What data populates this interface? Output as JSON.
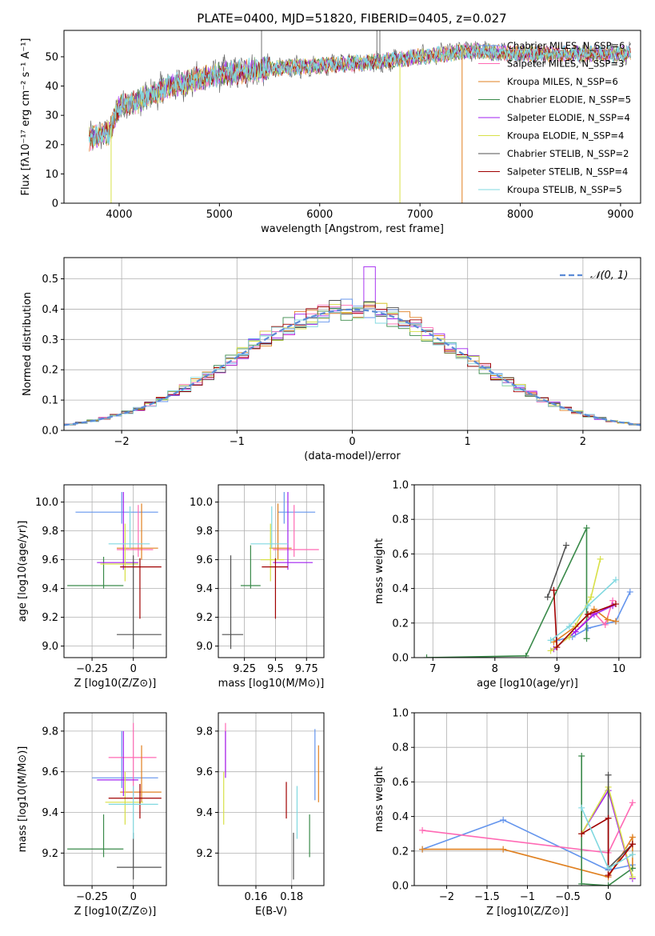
{
  "title": "PLATE=0400, MJD=51820, FIBERID=0405, z=0.027",
  "colors": {
    "Chabrier MILES": "#6495ed",
    "Salpeter MILES": "#ff69b4",
    "Kroupa MILES": "#e08020",
    "Chabrier ELODIE": "#3a8a4a",
    "Salpeter ELODIE": "#a020f0",
    "Kroupa ELODIE": "#d8e048",
    "Chabrier STELIB": "#505050",
    "Salpeter STELIB": "#a00000",
    "Kroupa STELIB": "#80d8e0"
  },
  "chart_data": [
    {
      "id": "spectrum",
      "type": "line",
      "title": "PLATE=0400, MJD=51820, FIBERID=0405, z=0.027",
      "xlabel": "wavelength [Angstrom, rest frame]",
      "ylabel": "Flux [fλ10⁻¹⁷ erg cm⁻² s⁻¹ A⁻¹]",
      "xlim": [
        3450,
        9200
      ],
      "ylim": [
        0,
        59
      ],
      "xticks": [
        4000,
        5000,
        6000,
        7000,
        8000,
        9000
      ],
      "yticks": [
        0,
        10,
        20,
        30,
        40,
        50
      ],
      "grid": false,
      "legend_position": "upper-right",
      "continuum": [
        [
          3700,
          22
        ],
        [
          3900,
          24
        ],
        [
          4000,
          33
        ],
        [
          4200,
          35
        ],
        [
          4500,
          40
        ],
        [
          5000,
          44
        ],
        [
          5500,
          46
        ],
        [
          6000,
          47
        ],
        [
          6500,
          48
        ],
        [
          7000,
          50
        ],
        [
          7500,
          52
        ],
        [
          8000,
          51
        ],
        [
          8500,
          51
        ],
        [
          9000,
          51
        ],
        [
          9100,
          51
        ]
      ],
      "spikes": [
        {
          "x": 5420,
          "y": 59
        },
        {
          "x": 6570,
          "y": 59
        },
        {
          "x": 6600,
          "y": 59
        }
      ],
      "drops": [
        {
          "series": "Kroupa ELODIE",
          "x": 3920,
          "y": 0
        },
        {
          "series": "Kroupa ELODIE",
          "x": 6800,
          "y": 0
        },
        {
          "series": "Kroupa MILES",
          "x": 7420,
          "y": 0
        }
      ],
      "series": [
        {
          "name": "Chabrier MILES, N_SSP=6",
          "key": "Chabrier MILES"
        },
        {
          "name": "Salpeter MILES, N_SSP=3",
          "key": "Salpeter MILES"
        },
        {
          "name": "Kroupa MILES, N_SSP=6",
          "key": "Kroupa MILES"
        },
        {
          "name": "Chabrier ELODIE, N_SSP=5",
          "key": "Chabrier ELODIE"
        },
        {
          "name": "Salpeter ELODIE, N_SSP=4",
          "key": "Salpeter ELODIE"
        },
        {
          "name": "Kroupa ELODIE, N_SSP=4",
          "key": "Kroupa ELODIE"
        },
        {
          "name": "Chabrier STELIB, N_SSP=2",
          "key": "Chabrier STELIB"
        },
        {
          "name": "Salpeter STELIB, N_SSP=4",
          "key": "Salpeter STELIB"
        },
        {
          "name": "Kroupa STELIB, N_SSP=5",
          "key": "Kroupa STELIB"
        }
      ]
    },
    {
      "id": "residuals",
      "type": "line",
      "xlabel": "(data-model)/error",
      "ylabel": "Normed distribution",
      "xlim": [
        -2.5,
        2.5
      ],
      "ylim": [
        0,
        0.57
      ],
      "xticks": [
        -2,
        -1,
        0,
        1,
        2
      ],
      "yticks": [
        0.0,
        0.1,
        0.2,
        0.3,
        0.4,
        0.5
      ],
      "grid": true,
      "legend_position": "upper-right",
      "reference": {
        "name": "𝒩(0, 1)",
        "mean": 0,
        "sigma": 1,
        "color": "#5b8bd6"
      },
      "bin_width": 0.1,
      "spike": {
        "x": 0.15,
        "y": 0.54,
        "series": "Salpeter ELODIE"
      }
    },
    {
      "id": "age_vs_Z",
      "type": "scatter",
      "xlabel": "Z [log10(Z/Z⊙)]",
      "ylabel": "age [log10(age/yr)]",
      "xlim": [
        -0.42,
        0.2
      ],
      "ylim": [
        8.92,
        10.12
      ],
      "xticks": [
        -0.25,
        0.0
      ],
      "yticks": [
        9.0,
        9.2,
        9.4,
        9.6,
        9.8,
        10.0
      ],
      "grid": true,
      "errorbars": [
        {
          "key": "Chabrier MILES",
          "x": -0.07,
          "y": 9.93,
          "x0": -0.35,
          "x1": 0.15,
          "y0": 9.85,
          "y1": 10.07
        },
        {
          "key": "Salpeter MILES",
          "x": 0.03,
          "y": 9.67,
          "x0": -0.1,
          "x1": 0.12,
          "y0": 9.62,
          "y1": 9.98
        },
        {
          "key": "Kroupa MILES",
          "x": 0.05,
          "y": 9.68,
          "x0": -0.1,
          "x1": 0.15,
          "y0": 9.6,
          "y1": 9.99
        },
        {
          "key": "Chabrier ELODIE",
          "x": -0.18,
          "y": 9.42,
          "x0": -0.4,
          "x1": -0.06,
          "y0": 9.4,
          "y1": 9.62
        },
        {
          "key": "Salpeter ELODIE",
          "x": -0.06,
          "y": 9.58,
          "x0": -0.22,
          "x1": 0.03,
          "y0": 9.53,
          "y1": 10.07
        },
        {
          "key": "Kroupa ELODIE",
          "x": -0.05,
          "y": 9.57,
          "x0": -0.2,
          "x1": 0.03,
          "y0": 9.45,
          "y1": 9.85
        },
        {
          "key": "Chabrier STELIB",
          "x": 0.0,
          "y": 9.08,
          "x0": -0.1,
          "x1": 0.17,
          "y0": 8.98,
          "y1": 9.63
        },
        {
          "key": "Salpeter STELIB",
          "x": 0.04,
          "y": 9.55,
          "x0": -0.08,
          "x1": 0.17,
          "y0": 9.19,
          "y1": 9.61
        },
        {
          "key": "Kroupa STELIB",
          "x": -0.02,
          "y": 9.71,
          "x0": -0.15,
          "x1": 0.1,
          "y0": 9.68,
          "y1": 9.97
        }
      ]
    },
    {
      "id": "age_vs_mass",
      "type": "scatter",
      "xlabel": "mass [log10(M/M⊙)]",
      "ylabel": "",
      "xlim": [
        9.04,
        9.89
      ],
      "ylim": [
        8.92,
        10.12
      ],
      "xticks": [
        9.25,
        9.5,
        9.75
      ],
      "yticks": [
        9.0,
        9.2,
        9.4,
        9.6,
        9.8,
        10.0
      ],
      "grid": true,
      "errorbars": [
        {
          "key": "Chabrier MILES",
          "x": 9.57,
          "y": 9.93,
          "x0": 9.52,
          "x1": 9.82,
          "y0": 9.85,
          "y1": 10.07
        },
        {
          "key": "Salpeter MILES",
          "x": 9.65,
          "y": 9.67,
          "x0": 9.48,
          "x1": 9.85,
          "y0": 9.62,
          "y1": 9.98
        },
        {
          "key": "Kroupa MILES",
          "x": 9.52,
          "y": 9.68,
          "x0": 9.45,
          "x1": 9.63,
          "y0": 9.6,
          "y1": 9.99
        },
        {
          "key": "Chabrier ELODIE",
          "x": 9.3,
          "y": 9.42,
          "x0": 9.22,
          "x1": 9.38,
          "y0": 9.4,
          "y1": 9.7
        },
        {
          "key": "Salpeter ELODIE",
          "x": 9.6,
          "y": 9.58,
          "x0": 9.48,
          "x1": 9.8,
          "y0": 9.53,
          "y1": 10.07
        },
        {
          "key": "Kroupa ELODIE",
          "x": 9.46,
          "y": 9.6,
          "x0": 9.38,
          "x1": 9.57,
          "y0": 9.45,
          "y1": 9.85
        },
        {
          "key": "Chabrier STELIB",
          "x": 9.14,
          "y": 9.08,
          "x0": 9.07,
          "x1": 9.24,
          "y0": 8.98,
          "y1": 9.63
        },
        {
          "key": "Salpeter STELIB",
          "x": 9.5,
          "y": 9.55,
          "x0": 9.39,
          "x1": 9.6,
          "y0": 9.19,
          "y1": 9.61
        },
        {
          "key": "Kroupa STELIB",
          "x": 9.47,
          "y": 9.71,
          "x0": 9.3,
          "x1": 9.6,
          "y0": 9.68,
          "y1": 9.97
        }
      ]
    },
    {
      "id": "weight_vs_age",
      "type": "line",
      "xlabel": "age [log10(age/yr)]",
      "ylabel": "mass weight",
      "xlim": [
        6.7,
        10.35
      ],
      "ylim": [
        0.0,
        1.0
      ],
      "xticks": [
        7,
        8,
        9,
        10
      ],
      "yticks": [
        0.0,
        0.2,
        0.4,
        0.6,
        0.8,
        1.0
      ],
      "grid": true,
      "series": [
        {
          "key": "Chabrier MILES",
          "points": [
            [
              9.0,
              0.1
            ],
            [
              9.25,
              0.12
            ],
            [
              9.5,
              0.17
            ],
            [
              9.95,
              0.21
            ],
            [
              10.18,
              0.38
            ]
          ]
        },
        {
          "key": "Salpeter MILES",
          "points": [
            [
              9.3,
              0.15
            ],
            [
              9.6,
              0.26
            ],
            [
              9.78,
              0.19
            ],
            [
              9.9,
              0.33
            ]
          ]
        },
        {
          "key": "Kroupa MILES",
          "points": [
            [
              8.95,
              0.09
            ],
            [
              9.3,
              0.18
            ],
            [
              9.6,
              0.28
            ],
            [
              9.82,
              0.22
            ],
            [
              9.95,
              0.21
            ]
          ]
        },
        {
          "key": "Chabrier ELODIE",
          "points": [
            [
              6.9,
              0.0
            ],
            [
              8.5,
              0.01
            ],
            [
              9.48,
              0.75
            ],
            [
              9.48,
              0.11
            ]
          ]
        },
        {
          "key": "Salpeter ELODIE",
          "points": [
            [
              8.95,
              0.05
            ],
            [
              9.3,
              0.15
            ],
            [
              9.6,
              0.25
            ],
            [
              9.9,
              0.3
            ]
          ]
        },
        {
          "key": "Kroupa ELODIE",
          "points": [
            [
              8.9,
              0.04
            ],
            [
              9.2,
              0.12
            ],
            [
              9.55,
              0.35
            ],
            [
              9.7,
              0.57
            ]
          ]
        },
        {
          "key": "Chabrier STELIB",
          "points": [
            [
              8.85,
              0.35
            ],
            [
              9.15,
              0.65
            ]
          ]
        },
        {
          "key": "Salpeter STELIB",
          "points": [
            [
              8.95,
              0.39
            ],
            [
              9.0,
              0.06
            ],
            [
              9.5,
              0.25
            ],
            [
              9.95,
              0.31
            ]
          ]
        },
        {
          "key": "Kroupa STELIB",
          "points": [
            [
              8.9,
              0.1
            ],
            [
              9.2,
              0.18
            ],
            [
              9.5,
              0.3
            ],
            [
              9.95,
              0.45
            ]
          ]
        }
      ]
    },
    {
      "id": "mass_vs_Z",
      "type": "scatter",
      "xlabel": "Z [log10(Z/Z⊙)]",
      "ylabel": "mass [log10(M/M⊙)]",
      "xlim": [
        -0.42,
        0.2
      ],
      "ylim": [
        9.04,
        9.89
      ],
      "xticks": [
        -0.25,
        0.0
      ],
      "yticks": [
        9.2,
        9.4,
        9.6,
        9.8
      ],
      "grid": true,
      "errorbars": [
        {
          "key": "Chabrier MILES",
          "x": -0.07,
          "y": 9.57,
          "x0": -0.25,
          "x1": 0.15,
          "y0": 9.52,
          "y1": 9.8
        },
        {
          "key": "Salpeter MILES",
          "x": 0.0,
          "y": 9.67,
          "x0": -0.15,
          "x1": 0.14,
          "y0": 9.48,
          "y1": 9.84
        },
        {
          "key": "Kroupa MILES",
          "x": 0.05,
          "y": 9.5,
          "x0": -0.08,
          "x1": 0.17,
          "y0": 9.45,
          "y1": 9.73
        },
        {
          "key": "Chabrier ELODIE",
          "x": -0.18,
          "y": 9.22,
          "x0": -0.4,
          "x1": -0.06,
          "y0": 9.18,
          "y1": 9.39
        },
        {
          "key": "Salpeter ELODIE",
          "x": -0.06,
          "y": 9.56,
          "x0": -0.22,
          "x1": 0.03,
          "y0": 9.48,
          "y1": 9.8
        },
        {
          "key": "Kroupa ELODIE",
          "x": -0.05,
          "y": 9.45,
          "x0": -0.17,
          "x1": 0.06,
          "y0": 9.34,
          "y1": 9.6
        },
        {
          "key": "Chabrier STELIB",
          "x": 0.0,
          "y": 9.13,
          "x0": -0.1,
          "x1": 0.17,
          "y0": 9.07,
          "y1": 9.3
        },
        {
          "key": "Salpeter STELIB",
          "x": 0.04,
          "y": 9.47,
          "x0": -0.15,
          "x1": 0.17,
          "y0": 9.37,
          "y1": 9.54
        },
        {
          "key": "Kroupa STELIB",
          "x": 0.0,
          "y": 9.44,
          "x0": -0.15,
          "x1": 0.15,
          "y0": 9.27,
          "y1": 9.53
        }
      ]
    },
    {
      "id": "mass_vs_ebv",
      "type": "scatter",
      "xlabel": "E(B-V)",
      "ylabel": "",
      "xlim": [
        0.139,
        0.198
      ],
      "ylim": [
        9.04,
        9.89
      ],
      "xticks": [
        0.16,
        0.18
      ],
      "yticks": [
        9.2,
        9.4,
        9.6,
        9.8
      ],
      "grid": true,
      "errorbars": [
        {
          "key": "Chabrier MILES",
          "x": 0.193,
          "y": 9.6,
          "x0": 0.193,
          "x1": 0.193,
          "y0": 9.46,
          "y1": 9.81
        },
        {
          "key": "Salpeter MILES",
          "x": 0.143,
          "y": 9.72,
          "x0": 0.143,
          "x1": 0.143,
          "y0": 9.6,
          "y1": 9.84
        },
        {
          "key": "Kroupa MILES",
          "x": 0.195,
          "y": 9.6,
          "x0": 0.195,
          "x1": 0.195,
          "y0": 9.45,
          "y1": 9.73
        },
        {
          "key": "Chabrier ELODIE",
          "x": 0.19,
          "y": 9.3,
          "x0": 0.19,
          "x1": 0.19,
          "y0": 9.18,
          "y1": 9.39
        },
        {
          "key": "Salpeter ELODIE",
          "x": 0.143,
          "y": 9.7,
          "x0": 0.143,
          "x1": 0.143,
          "y0": 9.57,
          "y1": 9.8
        },
        {
          "key": "Kroupa ELODIE",
          "x": 0.142,
          "y": 9.47,
          "x0": 0.142,
          "x1": 0.142,
          "y0": 9.34,
          "y1": 9.6
        },
        {
          "key": "Chabrier STELIB",
          "x": 0.181,
          "y": 9.18,
          "x0": 0.181,
          "x1": 0.181,
          "y0": 9.07,
          "y1": 9.3
        },
        {
          "key": "Salpeter STELIB",
          "x": 0.177,
          "y": 9.45,
          "x0": 0.177,
          "x1": 0.177,
          "y0": 9.37,
          "y1": 9.55
        },
        {
          "key": "Kroupa STELIB",
          "x": 0.183,
          "y": 9.4,
          "x0": 0.183,
          "x1": 0.183,
          "y0": 9.27,
          "y1": 9.53
        }
      ]
    },
    {
      "id": "weight_vs_Z",
      "type": "line",
      "xlabel": "Z [log10(Z/Z⊙)]",
      "ylabel": "mass weight",
      "xlim": [
        -2.4,
        0.4
      ],
      "ylim": [
        0.0,
        1.0
      ],
      "xticks": [
        -2.0,
        -1.5,
        -1.0,
        -0.5,
        0.0
      ],
      "yticks": [
        0.0,
        0.2,
        0.4,
        0.6,
        0.8,
        1.0
      ],
      "grid": true,
      "series": [
        {
          "key": "Chabrier MILES",
          "points": [
            [
              -2.3,
              0.21
            ],
            [
              -1.3,
              0.38
            ],
            [
              0.0,
              0.09
            ],
            [
              0.3,
              0.12
            ]
          ]
        },
        {
          "key": "Salpeter MILES",
          "points": [
            [
              -2.3,
              0.32
            ],
            [
              0.0,
              0.19
            ],
            [
              0.3,
              0.48
            ]
          ]
        },
        {
          "key": "Kroupa MILES",
          "points": [
            [
              -2.3,
              0.21
            ],
            [
              -1.3,
              0.21
            ],
            [
              0.0,
              0.05
            ],
            [
              0.3,
              0.28
            ],
            [
              0.3,
              0.1
            ]
          ]
        },
        {
          "key": "Chabrier ELODIE",
          "points": [
            [
              -0.33,
              0.75
            ],
            [
              -0.33,
              0.01
            ],
            [
              0.0,
              0.0
            ],
            [
              0.3,
              0.1
            ]
          ]
        },
        {
          "key": "Salpeter ELODIE",
          "points": [
            [
              -0.33,
              0.3
            ],
            [
              0.0,
              0.55
            ],
            [
              0.3,
              0.04
            ]
          ]
        },
        {
          "key": "Kroupa ELODIE",
          "points": [
            [
              -0.33,
              0.3
            ],
            [
              0.0,
              0.57
            ],
            [
              0.3,
              0.05
            ]
          ]
        },
        {
          "key": "Chabrier STELIB",
          "points": [
            [
              0.0,
              0.64
            ],
            [
              0.0,
              0.1
            ],
            [
              0.3,
              0.24
            ]
          ]
        },
        {
          "key": "Salpeter STELIB",
          "points": [
            [
              -0.33,
              0.3
            ],
            [
              0.0,
              0.39
            ],
            [
              0.0,
              0.06
            ],
            [
              0.3,
              0.24
            ]
          ]
        },
        {
          "key": "Kroupa STELIB",
          "points": [
            [
              -0.33,
              0.45
            ],
            [
              0.0,
              0.1
            ],
            [
              0.3,
              0.18
            ]
          ]
        }
      ]
    }
  ]
}
